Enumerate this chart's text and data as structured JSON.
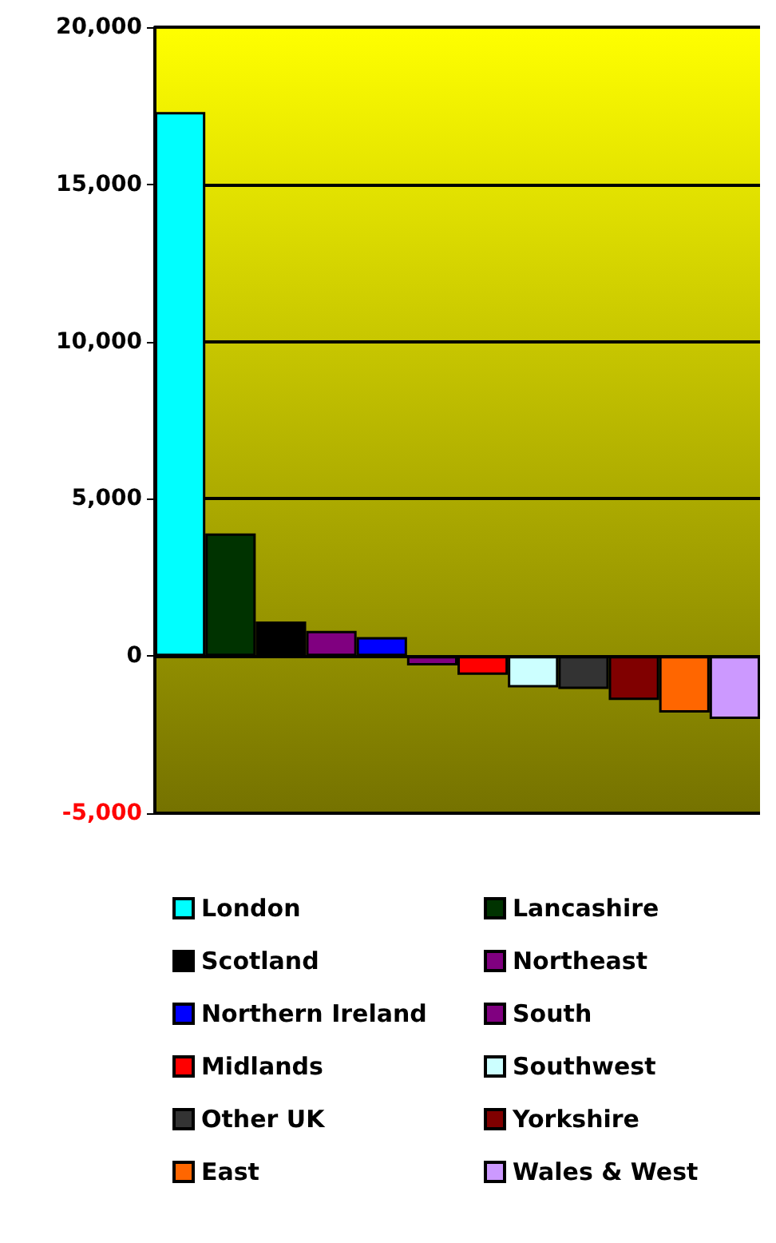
{
  "chart_data": {
    "type": "bar",
    "categories": [
      null,
      null,
      null,
      null,
      null,
      null,
      null,
      null,
      null,
      null,
      null,
      null
    ],
    "series": [
      {
        "name": "London",
        "color": "#00ffff",
        "values": [
          17300,
          null,
          null,
          null,
          null,
          null,
          null,
          null,
          null,
          null,
          null,
          null
        ]
      },
      {
        "name": "Lancashire",
        "color": "#003300",
        "values": [
          null,
          3900,
          null,
          null,
          null,
          null,
          null,
          null,
          null,
          null,
          null,
          null
        ]
      },
      {
        "name": "Scotland",
        "color": "#000000",
        "values": [
          null,
          null,
          1100,
          null,
          null,
          null,
          null,
          null,
          null,
          null,
          null,
          null
        ]
      },
      {
        "name": "Northeast",
        "color": "#800080",
        "values": [
          null,
          null,
          null,
          800,
          null,
          null,
          null,
          null,
          null,
          null,
          null,
          null
        ]
      },
      {
        "name": "Northern Ireland",
        "color": "#0000ff",
        "values": [
          null,
          null,
          null,
          null,
          600,
          null,
          null,
          null,
          null,
          null,
          null,
          null
        ]
      },
      {
        "name": "South",
        "color": "#800080",
        "values": [
          null,
          null,
          null,
          null,
          null,
          -300,
          null,
          null,
          null,
          null,
          null,
          null
        ]
      },
      {
        "name": "Midlands",
        "color": "#ff0000",
        "values": [
          null,
          null,
          null,
          null,
          null,
          null,
          -600,
          null,
          null,
          null,
          null,
          null
        ]
      },
      {
        "name": "Southwest",
        "color": "#ccffff",
        "values": [
          null,
          null,
          null,
          null,
          null,
          null,
          null,
          -1000,
          null,
          null,
          null,
          null
        ]
      },
      {
        "name": "Other UK",
        "color": "#333333",
        "values": [
          null,
          null,
          null,
          null,
          null,
          null,
          null,
          null,
          -1050,
          null,
          null,
          null
        ]
      },
      {
        "name": "Yorkshire",
        "color": "#800000",
        "values": [
          null,
          null,
          null,
          null,
          null,
          null,
          null,
          null,
          null,
          -1400,
          null,
          null
        ]
      },
      {
        "name": "East",
        "color": "#ff6600",
        "values": [
          null,
          null,
          null,
          null,
          null,
          null,
          null,
          null,
          null,
          null,
          -1800,
          null
        ]
      },
      {
        "name": "Wales & West",
        "color": "#cc99ff",
        "values": [
          null,
          null,
          null,
          null,
          null,
          null,
          null,
          null,
          null,
          null,
          null,
          -2000
        ]
      }
    ],
    "ylim": [
      -5000,
      20000
    ],
    "yticks": [
      {
        "value": -5000,
        "label": "-5,000"
      },
      0,
      {
        "value": 5000,
        "label": "5,000"
      },
      {
        "value": 10000,
        "label": "10,000"
      },
      {
        "value": 15000,
        "label": "15,000"
      },
      {
        "value": 20000,
        "label": "20,000"
      }
    ],
    "grid": "y",
    "legend": "bottom"
  }
}
